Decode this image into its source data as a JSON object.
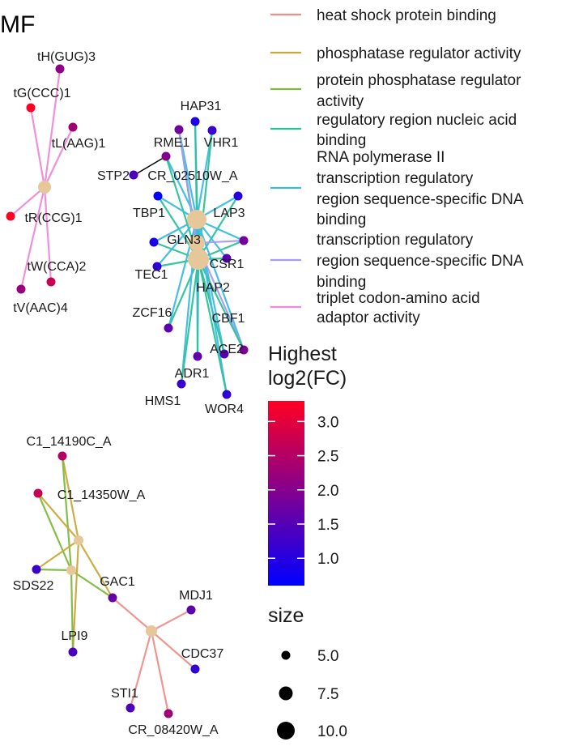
{
  "chart_data": {
    "type": "network",
    "title": "MF",
    "edge_legend": [
      {
        "name": "heat shock protein binding",
        "color": "#F08F8A"
      },
      {
        "name": "phosphatase regulator activity",
        "color": "#C9A93B"
      },
      {
        "name": "protein phosphatase regulator activity",
        "color": "#7DBA3C"
      },
      {
        "name": "regulatory region nucleic acid binding",
        "color": "#2BC29A"
      },
      {
        "name": "RNA polymerase II transcription regulatory region sequence-specific DNA binding",
        "color": "#3BBCE0"
      },
      {
        "name": "transcription regulatory region sequence-specific DNA binding",
        "color": "#A89BF0"
      },
      {
        "name": "triplet codon-amino acid adaptor activity",
        "color": "#F08AD8"
      }
    ],
    "edge_legend_lines": [
      [
        "heat shock protein binding"
      ],
      [
        "phosphatase regulator activity"
      ],
      [
        "protein phosphatase regulator",
        "activity"
      ],
      [
        "regulatory region nucleic acid",
        "binding"
      ],
      [
        "RNA polymerase II",
        "transcription regulatory",
        "region sequence-specific DNA",
        "binding"
      ],
      [
        "transcription regulatory",
        "region sequence-specific DNA",
        "binding"
      ],
      [
        "triplet codon-amino acid",
        "adaptor activity"
      ]
    ],
    "color_legend": {
      "title_lines": [
        "Highest",
        "log2(FC)"
      ],
      "ticks": [
        "3.0",
        "2.5",
        "2.0",
        "1.5",
        "1.0"
      ],
      "tick_values": [
        3.0,
        2.5,
        2.0,
        1.5,
        1.0
      ],
      "range": [
        0.6,
        3.3
      ],
      "colors": [
        "#0000FF",
        "#FF0022"
      ]
    },
    "size_legend": {
      "title": "size",
      "values": [
        5.0,
        7.5,
        10.0
      ],
      "labels": [
        "5.0",
        "7.5",
        "10.0"
      ]
    },
    "term_color": "#E6C79A",
    "genes": [
      {
        "id": "tH",
        "label": "tH(GUG)3",
        "fc": 2.1
      },
      {
        "id": "tG",
        "label": "tG(CCC)1",
        "fc": 3.3
      },
      {
        "id": "tL",
        "label": "tL(AAG)1",
        "fc": 2.3
      },
      {
        "id": "tR",
        "label": "tR(CCG)1",
        "fc": 3.3
      },
      {
        "id": "tW",
        "label": "tW(CCA)2",
        "fc": 2.7
      },
      {
        "id": "tV",
        "label": "tV(AAC)4",
        "fc": 2.2
      },
      {
        "id": "HAP31",
        "label": "HAP31",
        "fc": 0.9
      },
      {
        "id": "RME1",
        "label": "RME1",
        "fc": 1.8
      },
      {
        "id": "VHR1",
        "label": "VHR1",
        "fc": 1.2
      },
      {
        "id": "STP2",
        "label": "STP2",
        "fc": 1.4
      },
      {
        "id": "CR02510",
        "label": "CR_02510W_A",
        "fc": 2.0
      },
      {
        "id": "TBP1",
        "label": "TBP1",
        "fc": 0.6
      },
      {
        "id": "LAP3",
        "label": "LAP3",
        "fc": 1.0
      },
      {
        "id": "GLN3",
        "label": "GLN3",
        "fc": 0.9
      },
      {
        "id": "CSR1",
        "label": "CSR1",
        "fc": 1.8
      },
      {
        "id": "TEC1",
        "label": "TEC1",
        "fc": 1.1
      },
      {
        "id": "HAP2",
        "label": "HAP2",
        "fc": 1.5
      },
      {
        "id": "ZCF16",
        "label": "ZCF16",
        "fc": 1.6
      },
      {
        "id": "CBF1",
        "label": "CBF1",
        "fc": 1.5
      },
      {
        "id": "ACE2",
        "label": "ACE2",
        "fc": 1.9
      },
      {
        "id": "ADR1",
        "label": "ADR1",
        "fc": 1.6
      },
      {
        "id": "HMS1",
        "label": "HMS1",
        "fc": 1.2
      },
      {
        "id": "WOR4",
        "label": "WOR4",
        "fc": 1.1
      },
      {
        "id": "C1_14190C",
        "label": "C1_14190C_A",
        "fc": 2.5
      },
      {
        "id": "C1_14350W",
        "label": "C1_14350W_A",
        "fc": 2.7
      },
      {
        "id": "SDS22",
        "label": "SDS22",
        "fc": 1.2
      },
      {
        "id": "GAC1",
        "label": "GAC1",
        "fc": 1.7
      },
      {
        "id": "MDJ1",
        "label": "MDJ1",
        "fc": 1.6
      },
      {
        "id": "LPI9",
        "label": "LPI9",
        "fc": 1.4
      },
      {
        "id": "CDC37",
        "label": "CDC37",
        "fc": 1.1
      },
      {
        "id": "STI1",
        "label": "STI1",
        "fc": 1.4
      },
      {
        "id": "CR08420",
        "label": "CR_08420W_A",
        "fc": 2.3
      }
    ]
  }
}
